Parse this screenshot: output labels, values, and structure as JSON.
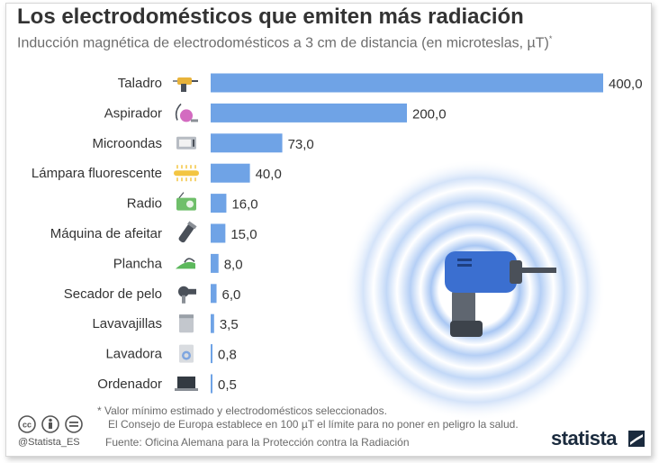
{
  "title": "Los electrodomésticos que emiten más radiación",
  "subtitle": "Inducción magnética de electrodomésticos a 3 cm de distancia (en microteslas, µT)",
  "subtitle_mark": "*",
  "chart_data": {
    "type": "bar",
    "orientation": "horizontal",
    "categories": [
      "Taladro",
      "Aspirador",
      "Microondas",
      "Lámpara fluorescente",
      "Radio",
      "Máquina de afeitar",
      "Plancha",
      "Secador de pelo",
      "Lavavajillas",
      "Lavadora",
      "Ordenador"
    ],
    "values": [
      400.0,
      200.0,
      73.0,
      40.0,
      16.0,
      15.0,
      8.0,
      6.0,
      3.5,
      0.8,
      0.5
    ],
    "value_labels": [
      "400,0",
      "200,0",
      "73,0",
      "40,0",
      "16,0",
      "15,0",
      "8,0",
      "6,0",
      "3,5",
      "0,8",
      "0,5"
    ],
    "icons": [
      "drill-icon",
      "vacuum-icon",
      "microwave-icon",
      "fluorescent-lamp-icon",
      "radio-icon",
      "shaver-icon",
      "iron-icon",
      "hair-dryer-icon",
      "dishwasher-icon",
      "washing-machine-icon",
      "laptop-icon"
    ],
    "xlim": [
      0,
      400
    ],
    "bar_color": "#6fa3e6",
    "grid": false,
    "legend": "none"
  },
  "footnote": {
    "line1": "*  Valor mínimo estimado y electrodomésticos seleccionados.",
    "line2": "El Consejo de Europa establece en 100 µT el límite para no poner en peligro la salud."
  },
  "source": "Fuente: Oficina Alemana para la Protección contra la Radiación",
  "handle": "@Statista_ES",
  "logo": "statista",
  "colors": {
    "title": "#333333",
    "subtitle": "#6d6d6d",
    "bar": "#6fa3e6",
    "drill_body": "#3b6fd0",
    "ripple": "#9fc0f2",
    "logo": "#1b2b3e"
  },
  "license_icons": [
    "cc-icon",
    "attribution-icon",
    "no-derivatives-icon"
  ]
}
